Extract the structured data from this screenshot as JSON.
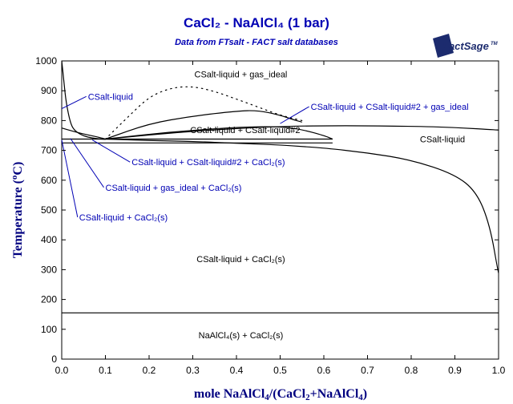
{
  "header": {
    "title": "CaCl₂ - NaAlCl₄ (1 bar)",
    "subtitle": "Data from FTsalt - FACT salt databases",
    "logo": {
      "text": "FactSage",
      "tm": "TM",
      "icon": "factsage-logo"
    }
  },
  "colors": {
    "accent": "#0000b4",
    "axis_title": "#000080",
    "curves": "#000000"
  },
  "chart_data": {
    "type": "line",
    "title": "CaCl₂ - NaAlCl₄ (1 bar)",
    "xlabel": "mole NaAlCl₄/(CaCl₂+NaAlCl₄)",
    "ylabel": "Temperature (°C)",
    "xlim": [
      0,
      1
    ],
    "ylim": [
      0,
      1000
    ],
    "grid": false,
    "x_ticks": [
      "0.0",
      "0.1",
      "0.2",
      "0.3",
      "0.4",
      "0.5",
      "0.6",
      "0.7",
      "0.8",
      "0.9",
      "1.0"
    ],
    "y_ticks": [
      "0",
      "100",
      "200",
      "300",
      "400",
      "500",
      "600",
      "700",
      "800",
      "900",
      "1000"
    ],
    "series": [
      {
        "style": "solid",
        "x": [
          0.0,
          0.005,
          0.01,
          0.02,
          0.03,
          0.05,
          0.07,
          0.09,
          0.1
        ],
        "y": [
          1000,
          930,
          860,
          790,
          765,
          748,
          741,
          738,
          737
        ]
      },
      {
        "style": "solid",
        "x": [
          0.0,
          0.03,
          0.06,
          0.09,
          0.1
        ],
        "y": [
          775,
          762,
          752,
          742,
          738
        ]
      },
      {
        "style": "solid",
        "x": [
          0.1,
          0.2,
          0.3,
          0.4,
          0.5,
          0.55,
          0.6,
          0.7,
          0.8,
          0.9,
          0.95,
          0.98,
          1.0
        ],
        "y": [
          738,
          733,
          730,
          724,
          718,
          713,
          708,
          692,
          668,
          620,
          560,
          450,
          285
        ]
      },
      {
        "style": "solid",
        "x": [
          0.1,
          0.2,
          0.3,
          0.4,
          0.45,
          0.5,
          0.53,
          0.55
        ],
        "y": [
          738,
          790,
          815,
          832,
          834,
          818,
          803,
          795
        ]
      },
      {
        "style": "solid",
        "x": [
          0.1,
          0.25,
          0.4,
          0.5,
          0.55,
          0.6,
          0.62
        ],
        "y": [
          738,
          762,
          778,
          780,
          770,
          750,
          738
        ]
      },
      {
        "style": "solid",
        "x": [
          0.1,
          0.3,
          0.5,
          0.65,
          0.8,
          0.9,
          1.0
        ],
        "y": [
          738,
          765,
          781,
          783,
          781,
          777,
          768
        ]
      },
      {
        "style": "dotted",
        "x": [
          0.1,
          0.15,
          0.2,
          0.25,
          0.3,
          0.35,
          0.4,
          0.45,
          0.5,
          0.55
        ],
        "y": [
          738,
          810,
          880,
          910,
          915,
          898,
          872,
          845,
          818,
          800
        ]
      },
      {
        "style": "solid",
        "x": [
          0.0,
          0.62
        ],
        "y": [
          738,
          738
        ]
      },
      {
        "style": "solid",
        "x": [
          0.0,
          0.62
        ],
        "y": [
          725,
          725
        ]
      },
      {
        "style": "solid",
        "x": [
          0.0,
          1.0
        ],
        "y": [
          155,
          155
        ]
      }
    ],
    "annotations": [
      {
        "text": "CSalt-liquid + gas_ideal",
        "x": 0.41,
        "y": 945
      },
      {
        "text": "CSalt-liquid + CSalt-liquid#2",
        "x": 0.42,
        "y": 758
      },
      {
        "text": "CSalt-liquid",
        "x": 0.82,
        "y": 727
      },
      {
        "text": "CSalt-liquid + CaCl₂(s)",
        "x": 0.41,
        "y": 325
      },
      {
        "text": "NaAlCl₄(s) + CaCl₂(s)",
        "x": 0.41,
        "y": 70
      }
    ],
    "callouts": [
      {
        "text": "CSalt-liquid",
        "x": 0.06,
        "y": 870,
        "ax": 0.0,
        "ay": 840
      },
      {
        "text": "CSalt-liquid + CSalt-liquid#2 + gas_ideal",
        "x": 0.57,
        "y": 836,
        "ax": 0.5,
        "ay": 790
      },
      {
        "text": "CSalt-liquid + CSalt-liquid#2 + CaCl₂(s)",
        "x": 0.16,
        "y": 650,
        "ax": 0.07,
        "ay": 735
      },
      {
        "text": "CSalt-liquid + gas_ideal + CaCl₂(s)",
        "x": 0.1,
        "y": 565,
        "ax": 0.02,
        "ay": 740
      },
      {
        "text": "CSalt-liquid + CaCl₂(s)",
        "x": 0.04,
        "y": 465,
        "ax": 0.0,
        "ay": 735
      }
    ]
  }
}
